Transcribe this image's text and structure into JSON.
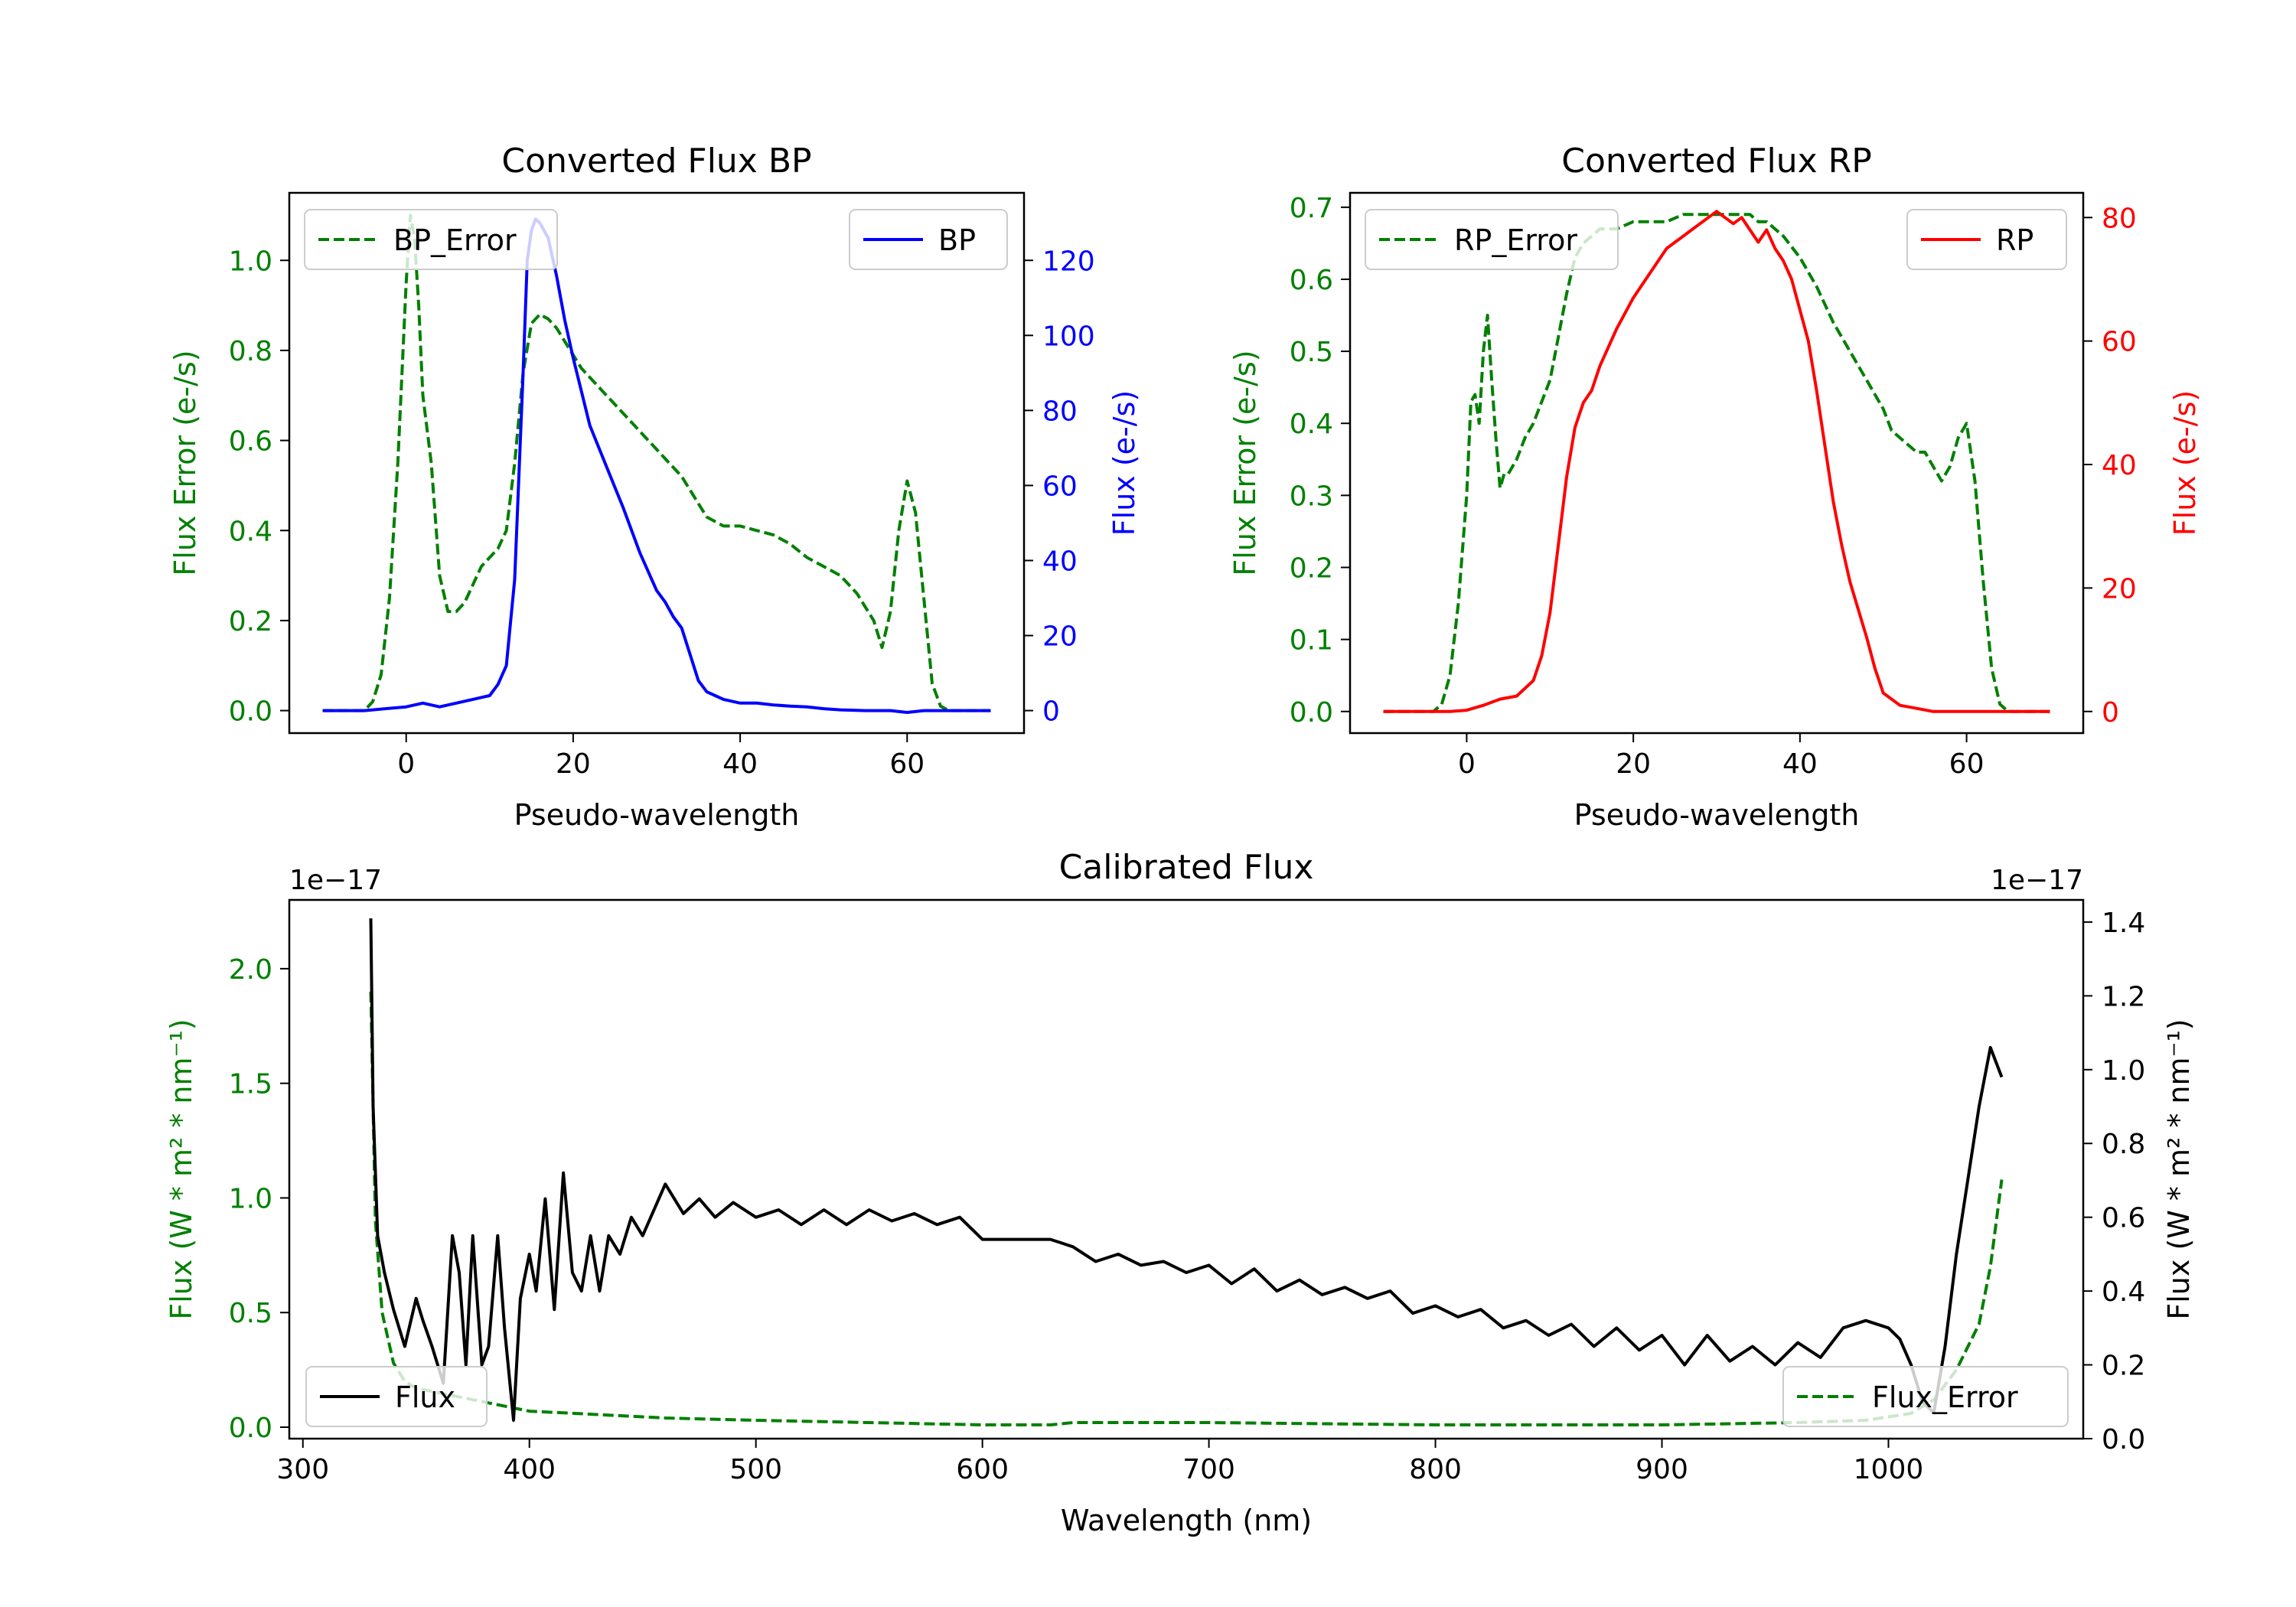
{
  "chart_data": [
    {
      "type": "line",
      "title": "Converted Flux BP",
      "xlabel": "Pseudo-wavelength",
      "ylabel_left": "Flux Error (e-/s)",
      "ylabel_right": "Flux (e-/s)",
      "xlim": [
        -14,
        74
      ],
      "ylim_left": [
        -0.05,
        1.15
      ],
      "ylim_right": [
        -6,
        138
      ],
      "xticks": [
        0,
        20,
        40,
        60
      ],
      "yticks_left": [
        0.0,
        0.2,
        0.4,
        0.6,
        0.8,
        1.0
      ],
      "yticks_right": [
        0,
        20,
        40,
        60,
        80,
        100,
        120
      ],
      "x_tick_labels": [
        "0",
        "20",
        "40",
        "60"
      ],
      "y_left_tick_labels": [
        "0.0",
        "0.2",
        "0.4",
        "0.6",
        "0.8",
        "1.0"
      ],
      "y_right_tick_labels": [
        "0",
        "20",
        "40",
        "60",
        "80",
        "100",
        "120"
      ],
      "grid": false,
      "series": [
        {
          "name": "BP_Error",
          "axis": "left",
          "color": "#008000",
          "dash": true,
          "legend": "top-left",
          "x": [
            -10,
            -5,
            -4,
            -3,
            -2,
            -1,
            0,
            0.5,
            1,
            1.5,
            2,
            3,
            4,
            5,
            6,
            7,
            8,
            9,
            10,
            11,
            12,
            13,
            14,
            15,
            16,
            17,
            18,
            19,
            20,
            21,
            22,
            23,
            24,
            25,
            26,
            27,
            28,
            29,
            30,
            31,
            32,
            33,
            34,
            35,
            36,
            37,
            38,
            39,
            40,
            42,
            44,
            46,
            48,
            50,
            52,
            54,
            55,
            56,
            57,
            58,
            59,
            60,
            61,
            62,
            63,
            64,
            65,
            66,
            70
          ],
          "values": [
            0,
            0,
            0.02,
            0.08,
            0.25,
            0.55,
            0.95,
            1.1,
            1.05,
            0.9,
            0.7,
            0.55,
            0.3,
            0.22,
            0.22,
            0.24,
            0.28,
            0.32,
            0.34,
            0.36,
            0.4,
            0.55,
            0.75,
            0.86,
            0.88,
            0.87,
            0.85,
            0.82,
            0.79,
            0.76,
            0.74,
            0.72,
            0.7,
            0.68,
            0.66,
            0.64,
            0.62,
            0.6,
            0.58,
            0.56,
            0.54,
            0.52,
            0.49,
            0.46,
            0.43,
            0.42,
            0.41,
            0.41,
            0.41,
            0.4,
            0.39,
            0.37,
            0.34,
            0.32,
            0.3,
            0.26,
            0.23,
            0.2,
            0.14,
            0.22,
            0.4,
            0.51,
            0.44,
            0.25,
            0.06,
            0.01,
            0,
            0,
            0
          ]
        },
        {
          "name": "BP",
          "axis": "right",
          "color": "#0000ff",
          "dash": false,
          "legend": "top-right",
          "x": [
            -10,
            -5,
            0,
            2,
            4,
            6,
            8,
            10,
            11,
            12,
            13,
            14,
            14.5,
            15,
            15.5,
            16,
            17,
            18,
            19,
            20,
            21,
            22,
            24,
            26,
            28,
            30,
            31,
            32,
            33,
            34,
            35,
            36,
            37,
            38,
            40,
            42,
            44,
            46,
            48,
            50,
            52,
            55,
            58,
            60,
            62,
            65,
            70
          ],
          "values": [
            0,
            0,
            1,
            2,
            1,
            2,
            3,
            4,
            7,
            12,
            35,
            90,
            120,
            128,
            131,
            130,
            126,
            116,
            104,
            94,
            85,
            76,
            65,
            54,
            42,
            32,
            29,
            25,
            22,
            15,
            8,
            5,
            4,
            3,
            2,
            2,
            1.5,
            1.2,
            1,
            0.5,
            0.2,
            0,
            0,
            -0.5,
            0,
            0,
            0
          ]
        }
      ]
    },
    {
      "type": "line",
      "title": "Converted Flux RP",
      "xlabel": "Pseudo-wavelength",
      "ylabel_left": "Flux Error (e-/s)",
      "ylabel_right": "Flux (e-/s)",
      "xlim": [
        -14,
        74
      ],
      "ylim_left": [
        -0.03,
        0.72
      ],
      "ylim_right": [
        -3.5,
        84
      ],
      "xticks": [
        0,
        20,
        40,
        60
      ],
      "yticks_left": [
        0.0,
        0.1,
        0.2,
        0.3,
        0.4,
        0.5,
        0.6,
        0.7
      ],
      "yticks_right": [
        0,
        20,
        40,
        60,
        80
      ],
      "x_tick_labels": [
        "0",
        "20",
        "40",
        "60"
      ],
      "y_left_tick_labels": [
        "0.0",
        "0.1",
        "0.2",
        "0.3",
        "0.4",
        "0.5",
        "0.6",
        "0.7"
      ],
      "y_right_tick_labels": [
        "0",
        "20",
        "40",
        "60",
        "80"
      ],
      "grid": false,
      "series": [
        {
          "name": "RP_Error",
          "axis": "left",
          "color": "#008000",
          "dash": true,
          "legend": "top-left",
          "x": [
            -10,
            -4,
            -3,
            -2,
            -1,
            0,
            0.5,
            1,
            1.5,
            2,
            2.5,
            3,
            3.5,
            4,
            4.5,
            5,
            6,
            7,
            8,
            9,
            10,
            11,
            12,
            13,
            14,
            15,
            16,
            18,
            20,
            22,
            24,
            26,
            28,
            30,
            32,
            33,
            34,
            35,
            36,
            38,
            40,
            42,
            44,
            46,
            48,
            50,
            51,
            52,
            53,
            54,
            55,
            56,
            57,
            58,
            59,
            60,
            61,
            62,
            63,
            64,
            65,
            70
          ],
          "values": [
            0,
            0,
            0.01,
            0.05,
            0.15,
            0.3,
            0.43,
            0.44,
            0.4,
            0.5,
            0.55,
            0.46,
            0.38,
            0.31,
            0.33,
            0.33,
            0.35,
            0.38,
            0.4,
            0.43,
            0.46,
            0.52,
            0.58,
            0.63,
            0.65,
            0.66,
            0.67,
            0.67,
            0.68,
            0.68,
            0.68,
            0.69,
            0.69,
            0.69,
            0.69,
            0.69,
            0.69,
            0.68,
            0.68,
            0.66,
            0.63,
            0.59,
            0.54,
            0.5,
            0.46,
            0.42,
            0.39,
            0.38,
            0.37,
            0.36,
            0.36,
            0.34,
            0.32,
            0.34,
            0.38,
            0.4,
            0.32,
            0.18,
            0.06,
            0.01,
            0,
            0
          ]
        },
        {
          "name": "RP",
          "axis": "right",
          "color": "#ff0000",
          "dash": false,
          "legend": "top-right",
          "x": [
            -10,
            -2,
            0,
            2,
            4,
            6,
            8,
            9,
            10,
            11,
            12,
            13,
            14,
            15,
            16,
            18,
            20,
            22,
            23,
            24,
            25,
            26,
            27,
            28,
            29,
            30,
            31,
            32,
            33,
            34,
            35,
            36,
            37,
            38,
            39,
            40,
            41,
            42,
            43,
            44,
            45,
            46,
            48,
            49,
            50,
            51,
            52,
            54,
            56,
            60,
            70
          ],
          "values": [
            0,
            0,
            0.2,
            1,
            2,
            2.5,
            5,
            9,
            16,
            27,
            38,
            46,
            50,
            52,
            56,
            62,
            67,
            71,
            73,
            75,
            76,
            77,
            78,
            79,
            80,
            81,
            80,
            79,
            80,
            78,
            76,
            78,
            75,
            73,
            70,
            65,
            60,
            52,
            43,
            34,
            27,
            21,
            12,
            7,
            3,
            2,
            1,
            0.5,
            0,
            0,
            0
          ]
        }
      ]
    },
    {
      "type": "line",
      "title": "Calibrated Flux",
      "xlabel": "Wavelength (nm)",
      "ylabel_left": "Flux (W * m² * nm⁻¹)",
      "ylabel_right": "Flux (W * m² * nm⁻¹)",
      "offset_left": "1e−17",
      "offset_right": "1e−17",
      "xlim": [
        294,
        1086
      ],
      "ylim_left": [
        -0.05,
        2.3
      ],
      "ylim_right": [
        0,
        1.46
      ],
      "xticks": [
        300,
        400,
        500,
        600,
        700,
        800,
        900,
        1000
      ],
      "yticks_left": [
        0.0,
        0.5,
        1.0,
        1.5,
        2.0
      ],
      "yticks_right": [
        0.0,
        0.2,
        0.4,
        0.6,
        0.8,
        1.0,
        1.2,
        1.4
      ],
      "x_tick_labels": [
        "300",
        "400",
        "500",
        "600",
        "700",
        "800",
        "900",
        "1000"
      ],
      "y_left_tick_labels": [
        "0.0",
        "0.5",
        "1.0",
        "1.5",
        "2.0"
      ],
      "y_right_tick_labels": [
        "0.0",
        "0.2",
        "0.4",
        "0.6",
        "0.8",
        "1.0",
        "1.2",
        "1.4"
      ],
      "grid": false,
      "series": [
        {
          "name": "Flux_Error",
          "axis": "left",
          "color": "#008000",
          "dash": true,
          "legend": "bottom-right",
          "x": [
            330,
            332,
            335,
            340,
            345,
            350,
            360,
            370,
            380,
            390,
            400,
            420,
            440,
            460,
            500,
            600,
            630,
            640,
            700,
            800,
            900,
            960,
            990,
            1010,
            1020,
            1030,
            1040,
            1045,
            1050
          ],
          "values": [
            1.9,
            0.9,
            0.5,
            0.28,
            0.2,
            0.17,
            0.15,
            0.13,
            0.11,
            0.09,
            0.07,
            0.06,
            0.05,
            0.04,
            0.03,
            0.01,
            0.01,
            0.02,
            0.02,
            0.01,
            0.01,
            0.02,
            0.03,
            0.06,
            0.12,
            0.25,
            0.45,
            0.7,
            1.08
          ]
        },
        {
          "name": "Flux",
          "axis": "right",
          "color": "#000000",
          "dash": false,
          "legend": "bottom-left",
          "x": [
            330,
            331,
            333,
            336,
            340,
            345,
            350,
            353,
            357,
            362,
            366,
            369,
            372,
            375,
            379,
            382,
            386,
            389,
            393,
            396,
            400,
            403,
            407,
            411,
            415,
            419,
            423,
            427,
            431,
            435,
            440,
            445,
            450,
            460,
            468,
            475,
            482,
            490,
            500,
            510,
            520,
            530,
            540,
            550,
            560,
            570,
            580,
            590,
            600,
            610,
            620,
            630,
            635,
            640,
            645,
            650,
            660,
            670,
            680,
            690,
            700,
            710,
            720,
            730,
            740,
            750,
            760,
            770,
            780,
            790,
            800,
            810,
            820,
            830,
            840,
            850,
            860,
            870,
            880,
            890,
            900,
            910,
            920,
            930,
            940,
            950,
            960,
            970,
            980,
            990,
            1000,
            1005,
            1010,
            1015,
            1020,
            1025,
            1030,
            1035,
            1040,
            1045,
            1050
          ],
          "values": [
            1.41,
            0.9,
            0.55,
            0.45,
            0.35,
            0.25,
            0.38,
            0.32,
            0.25,
            0.15,
            0.55,
            0.45,
            0.2,
            0.55,
            0.2,
            0.25,
            0.55,
            0.3,
            0.05,
            0.38,
            0.5,
            0.4,
            0.65,
            0.35,
            0.72,
            0.45,
            0.4,
            0.55,
            0.4,
            0.55,
            0.5,
            0.6,
            0.55,
            0.69,
            0.61,
            0.65,
            0.6,
            0.64,
            0.6,
            0.62,
            0.58,
            0.62,
            0.58,
            0.62,
            0.59,
            0.61,
            0.58,
            0.6,
            0.54,
            0.54,
            0.54,
            0.54,
            0.53,
            0.52,
            0.5,
            0.48,
            0.5,
            0.47,
            0.48,
            0.45,
            0.47,
            0.42,
            0.46,
            0.4,
            0.43,
            0.39,
            0.41,
            0.38,
            0.4,
            0.34,
            0.36,
            0.33,
            0.35,
            0.3,
            0.32,
            0.28,
            0.31,
            0.25,
            0.3,
            0.24,
            0.28,
            0.2,
            0.28,
            0.21,
            0.25,
            0.2,
            0.26,
            0.22,
            0.3,
            0.32,
            0.3,
            0.27,
            0.2,
            0.1,
            0.07,
            0.25,
            0.5,
            0.7,
            0.9,
            1.06,
            0.98
          ]
        }
      ]
    }
  ]
}
